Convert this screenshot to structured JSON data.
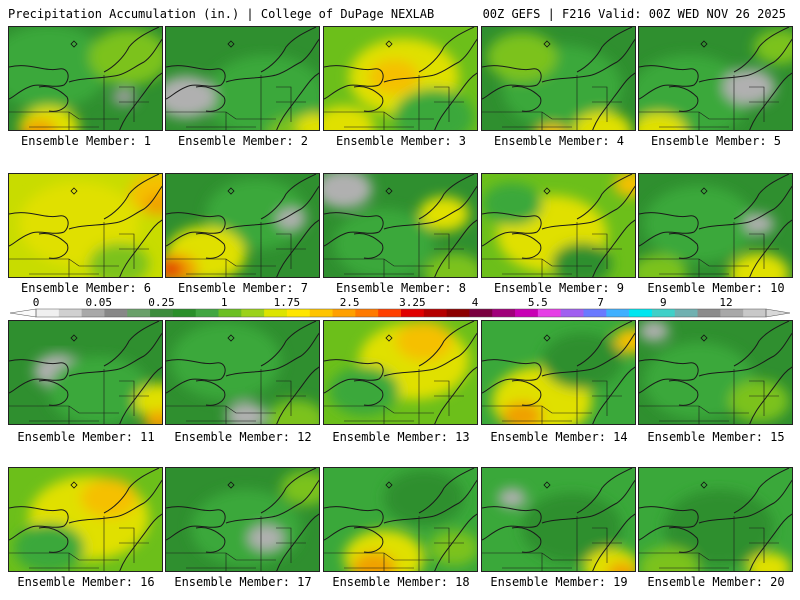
{
  "header": {
    "title_left": "Precipitation Accumulation (in.) | College of DuPage NEXLAB",
    "title_right": "00Z GEFS | F216 Valid: 00Z WED NOV 26 2025"
  },
  "panels": [
    {
      "caption": "Ensemble Member: 1",
      "base": "#2f8f2f",
      "blobs": [
        [
          "#3aa83a",
          40,
          40,
          60
        ],
        [
          "#7cc21a",
          120,
          30,
          40
        ],
        [
          "#e0e000",
          40,
          100,
          30
        ],
        [
          "#f0a000",
          30,
          105,
          18
        ],
        [
          "#9e9e9e",
          115,
          70,
          12
        ]
      ]
    },
    {
      "caption": "Ensemble Member: 2",
      "base": "#2f8f2f",
      "blobs": [
        [
          "#3aa83a",
          100,
          70,
          60
        ],
        [
          "#b0b0b0",
          20,
          70,
          30
        ],
        [
          "#7cc21a",
          130,
          110,
          30
        ],
        [
          "#e0e000",
          150,
          100,
          20
        ]
      ]
    },
    {
      "caption": "Ensemble Member: 3",
      "base": "#6cbf1a",
      "blobs": [
        [
          "#e0e000",
          80,
          50,
          55
        ],
        [
          "#f5c000",
          70,
          50,
          25
        ],
        [
          "#3aa83a",
          110,
          90,
          40
        ],
        [
          "#e0e000",
          20,
          100,
          30
        ]
      ]
    },
    {
      "caption": "Ensemble Member: 4",
      "base": "#2f8f2f",
      "blobs": [
        [
          "#3aa83a",
          80,
          60,
          60
        ],
        [
          "#7cc21a",
          40,
          30,
          35
        ],
        [
          "#e0e000",
          120,
          105,
          30
        ],
        [
          "#f5c000",
          70,
          110,
          18
        ]
      ]
    },
    {
      "caption": "Ensemble Member: 5",
      "base": "#2f8f2f",
      "blobs": [
        [
          "#3aa83a",
          50,
          70,
          60
        ],
        [
          "#b0b0b0",
          110,
          60,
          26
        ],
        [
          "#e0e000",
          20,
          105,
          28
        ],
        [
          "#7cc21a",
          140,
          20,
          25
        ]
      ]
    },
    {
      "caption": "Ensemble Member: 6",
      "base": "#c8dc00",
      "blobs": [
        [
          "#e0e000",
          70,
          50,
          60
        ],
        [
          "#f5c000",
          150,
          20,
          30
        ],
        [
          "#f0a000",
          150,
          30,
          15
        ],
        [
          "#7cc21a",
          110,
          90,
          30
        ]
      ]
    },
    {
      "caption": "Ensemble Member: 7",
      "base": "#2f8f2f",
      "blobs": [
        [
          "#3aa83a",
          90,
          40,
          50
        ],
        [
          "#e0e000",
          40,
          80,
          40
        ],
        [
          "#f0a000",
          10,
          95,
          22
        ],
        [
          "#e03000",
          5,
          95,
          12
        ],
        [
          "#b0b0b0",
          125,
          45,
          15
        ]
      ]
    },
    {
      "caption": "Ensemble Member: 8",
      "base": "#2f8f2f",
      "blobs": [
        [
          "#b0b0b0",
          20,
          15,
          28
        ],
        [
          "#3aa83a",
          60,
          70,
          50
        ],
        [
          "#e0e000",
          120,
          40,
          25
        ],
        [
          "#7cc21a",
          130,
          100,
          30
        ]
      ]
    },
    {
      "caption": "Ensemble Member: 9",
      "base": "#6cbf1a",
      "blobs": [
        [
          "#e0e000",
          70,
          60,
          55
        ],
        [
          "#f5c000",
          150,
          10,
          18
        ],
        [
          "#3aa83a",
          30,
          30,
          30
        ],
        [
          "#2f8f2f",
          100,
          90,
          30
        ]
      ]
    },
    {
      "caption": "Ensemble Member: 10",
      "base": "#2f8f2f",
      "blobs": [
        [
          "#3aa83a",
          60,
          50,
          55
        ],
        [
          "#b0b0b0",
          120,
          50,
          15
        ],
        [
          "#e0e000",
          120,
          100,
          30
        ],
        [
          "#7cc21a",
          20,
          100,
          28
        ]
      ]
    },
    {
      "caption": "Ensemble Member: 11",
      "base": "#2f8f2f",
      "blobs": [
        [
          "#b0b0b0",
          50,
          50,
          25
        ],
        [
          "#3aa83a",
          90,
          70,
          50
        ],
        [
          "#e0e000",
          150,
          80,
          25
        ],
        [
          "#f0a000",
          150,
          100,
          15
        ]
      ]
    },
    {
      "caption": "Ensemble Member: 12",
      "base": "#2f8f2f",
      "blobs": [
        [
          "#3aa83a",
          60,
          40,
          55
        ],
        [
          "#b0b0b0",
          80,
          95,
          20
        ],
        [
          "#7cc21a",
          130,
          100,
          30
        ]
      ]
    },
    {
      "caption": "Ensemble Member: 13",
      "base": "#6cbf1a",
      "blobs": [
        [
          "#e0e000",
          90,
          40,
          55
        ],
        [
          "#f5c000",
          100,
          20,
          28
        ],
        [
          "#3aa83a",
          40,
          70,
          35
        ]
      ]
    },
    {
      "caption": "Ensemble Member: 14",
      "base": "#3aa83a",
      "blobs": [
        [
          "#e0e000",
          60,
          80,
          50
        ],
        [
          "#f0a000",
          40,
          95,
          20
        ],
        [
          "#2f8f2f",
          100,
          40,
          40
        ],
        [
          "#f5c000",
          150,
          20,
          18
        ]
      ]
    },
    {
      "caption": "Ensemble Member: 15",
      "base": "#2f8f2f",
      "blobs": [
        [
          "#3aa83a",
          60,
          60,
          55
        ],
        [
          "#b0b0b0",
          15,
          10,
          15
        ],
        [
          "#7cc21a",
          120,
          80,
          30
        ]
      ]
    },
    {
      "caption": "Ensemble Member: 16",
      "base": "#6cbf1a",
      "blobs": [
        [
          "#e0e000",
          80,
          50,
          60
        ],
        [
          "#f5c000",
          100,
          30,
          28
        ],
        [
          "#3aa83a",
          40,
          80,
          35
        ]
      ]
    },
    {
      "caption": "Ensemble Member: 17",
      "base": "#2f8f2f",
      "blobs": [
        [
          "#3aa83a",
          80,
          60,
          55
        ],
        [
          "#b0b0b0",
          100,
          70,
          18
        ],
        [
          "#7cc21a",
          140,
          20,
          25
        ]
      ]
    },
    {
      "caption": "Ensemble Member: 18",
      "base": "#3aa83a",
      "blobs": [
        [
          "#e0e000",
          60,
          90,
          40
        ],
        [
          "#f0a000",
          50,
          100,
          22
        ],
        [
          "#2f8f2f",
          100,
          30,
          40
        ],
        [
          "#7cc21a",
          130,
          80,
          25
        ]
      ]
    },
    {
      "caption": "Ensemble Member: 19",
      "base": "#3aa83a",
      "blobs": [
        [
          "#2f8f2f",
          90,
          60,
          50
        ],
        [
          "#b0b0b0",
          30,
          30,
          14
        ],
        [
          "#e0e000",
          130,
          100,
          28
        ],
        [
          "#f0a000",
          140,
          105,
          15
        ]
      ]
    },
    {
      "caption": "Ensemble Member: 20",
      "base": "#3aa83a",
      "blobs": [
        [
          "#2f8f2f",
          80,
          60,
          55
        ],
        [
          "#7cc21a",
          30,
          100,
          30
        ],
        [
          "#e0e000",
          130,
          100,
          22
        ]
      ]
    }
  ],
  "colorbar": {
    "labels": [
      "0",
      "0.05",
      "0.25",
      "1",
      "1.75",
      "2.5",
      "3.25",
      "4",
      "5.5",
      "7",
      "9",
      "12"
    ],
    "colors": [
      "#f0f0f0",
      "#d0d0d0",
      "#a8a8a8",
      "#888888",
      "#6aa06a",
      "#3c8c3c",
      "#2a8f2a",
      "#41a641",
      "#6bbf22",
      "#9bd21a",
      "#dce400",
      "#ffe600",
      "#ffc400",
      "#ffa000",
      "#ff7a00",
      "#ff4000",
      "#e00000",
      "#b40000",
      "#8c0000",
      "#7a0040",
      "#a0007a",
      "#c800b4",
      "#e640e6",
      "#a060f0",
      "#6a7aff",
      "#40b0ff",
      "#00e6f0",
      "#40d0c8",
      "#70b0b0",
      "#8c8c8c",
      "#a8a8a8",
      "#c8c8c8"
    ]
  }
}
